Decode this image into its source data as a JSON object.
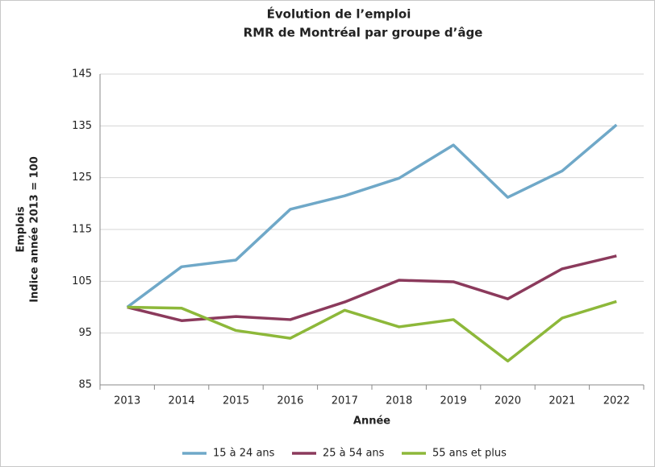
{
  "chart_data": {
    "type": "line",
    "title": "Évolution de l’emploi",
    "subtitle": "RMR de Montréal par groupe d’âge",
    "xlabel": "Année",
    "ylabel": [
      "Emplois",
      "Indice année 2013 = 100"
    ],
    "categories": [
      "2013",
      "2014",
      "2015",
      "2016",
      "2017",
      "2018",
      "2019",
      "2020",
      "2021",
      "2022"
    ],
    "series": [
      {
        "name": "15 à 24 ans",
        "color": "#6fa8c8",
        "values": [
          100,
          107.8,
          109.1,
          118.9,
          121.5,
          124.9,
          131.3,
          121.2,
          126.3,
          135.2
        ]
      },
      {
        "name": "25 à 54 ans",
        "color": "#8b3a5c",
        "values": [
          100,
          97.4,
          98.2,
          97.6,
          101,
          105.2,
          104.9,
          101.6,
          107.4,
          109.9
        ]
      },
      {
        "name": "55 ans et plus",
        "color": "#8db83a",
        "values": [
          100,
          99.8,
          95.5,
          94,
          99.4,
          96.2,
          97.6,
          89.6,
          97.9,
          101.1
        ]
      }
    ],
    "ylim": [
      85,
      145
    ],
    "yticks": [
      85,
      95,
      105,
      115,
      125,
      135,
      145
    ],
    "grid": true,
    "legend": "bottom"
  }
}
